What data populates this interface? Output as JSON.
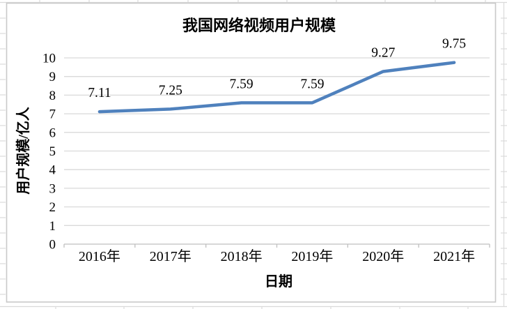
{
  "chart_data": {
    "type": "line",
    "title": "我国网络视频用户规模",
    "xlabel": "日期",
    "ylabel": "用户规模/亿人",
    "categories": [
      "2016年",
      "2017年",
      "2018年",
      "2019年",
      "2020年",
      "2021年"
    ],
    "values": [
      7.11,
      7.25,
      7.59,
      7.59,
      9.27,
      9.75
    ],
    "data_labels": [
      "7.11",
      "7.25",
      "7.59",
      "7.59",
      "9.27",
      "9.75"
    ],
    "ylim": [
      0,
      10
    ],
    "y_tick_step": 1,
    "y_ticks": [
      "0",
      "1",
      "2",
      "3",
      "4",
      "5",
      "6",
      "7",
      "8",
      "9",
      "10"
    ],
    "grid": "horizontal",
    "legend": "none",
    "colors": {
      "series_line": "#4F81BD",
      "gridline": "#D9D9D9",
      "axis_line": "#BFBFBF",
      "chart_border": "#C9C9C9",
      "sheet_gridline": "#DADADA",
      "background": "#FFFFFF",
      "text": "#000000"
    }
  }
}
